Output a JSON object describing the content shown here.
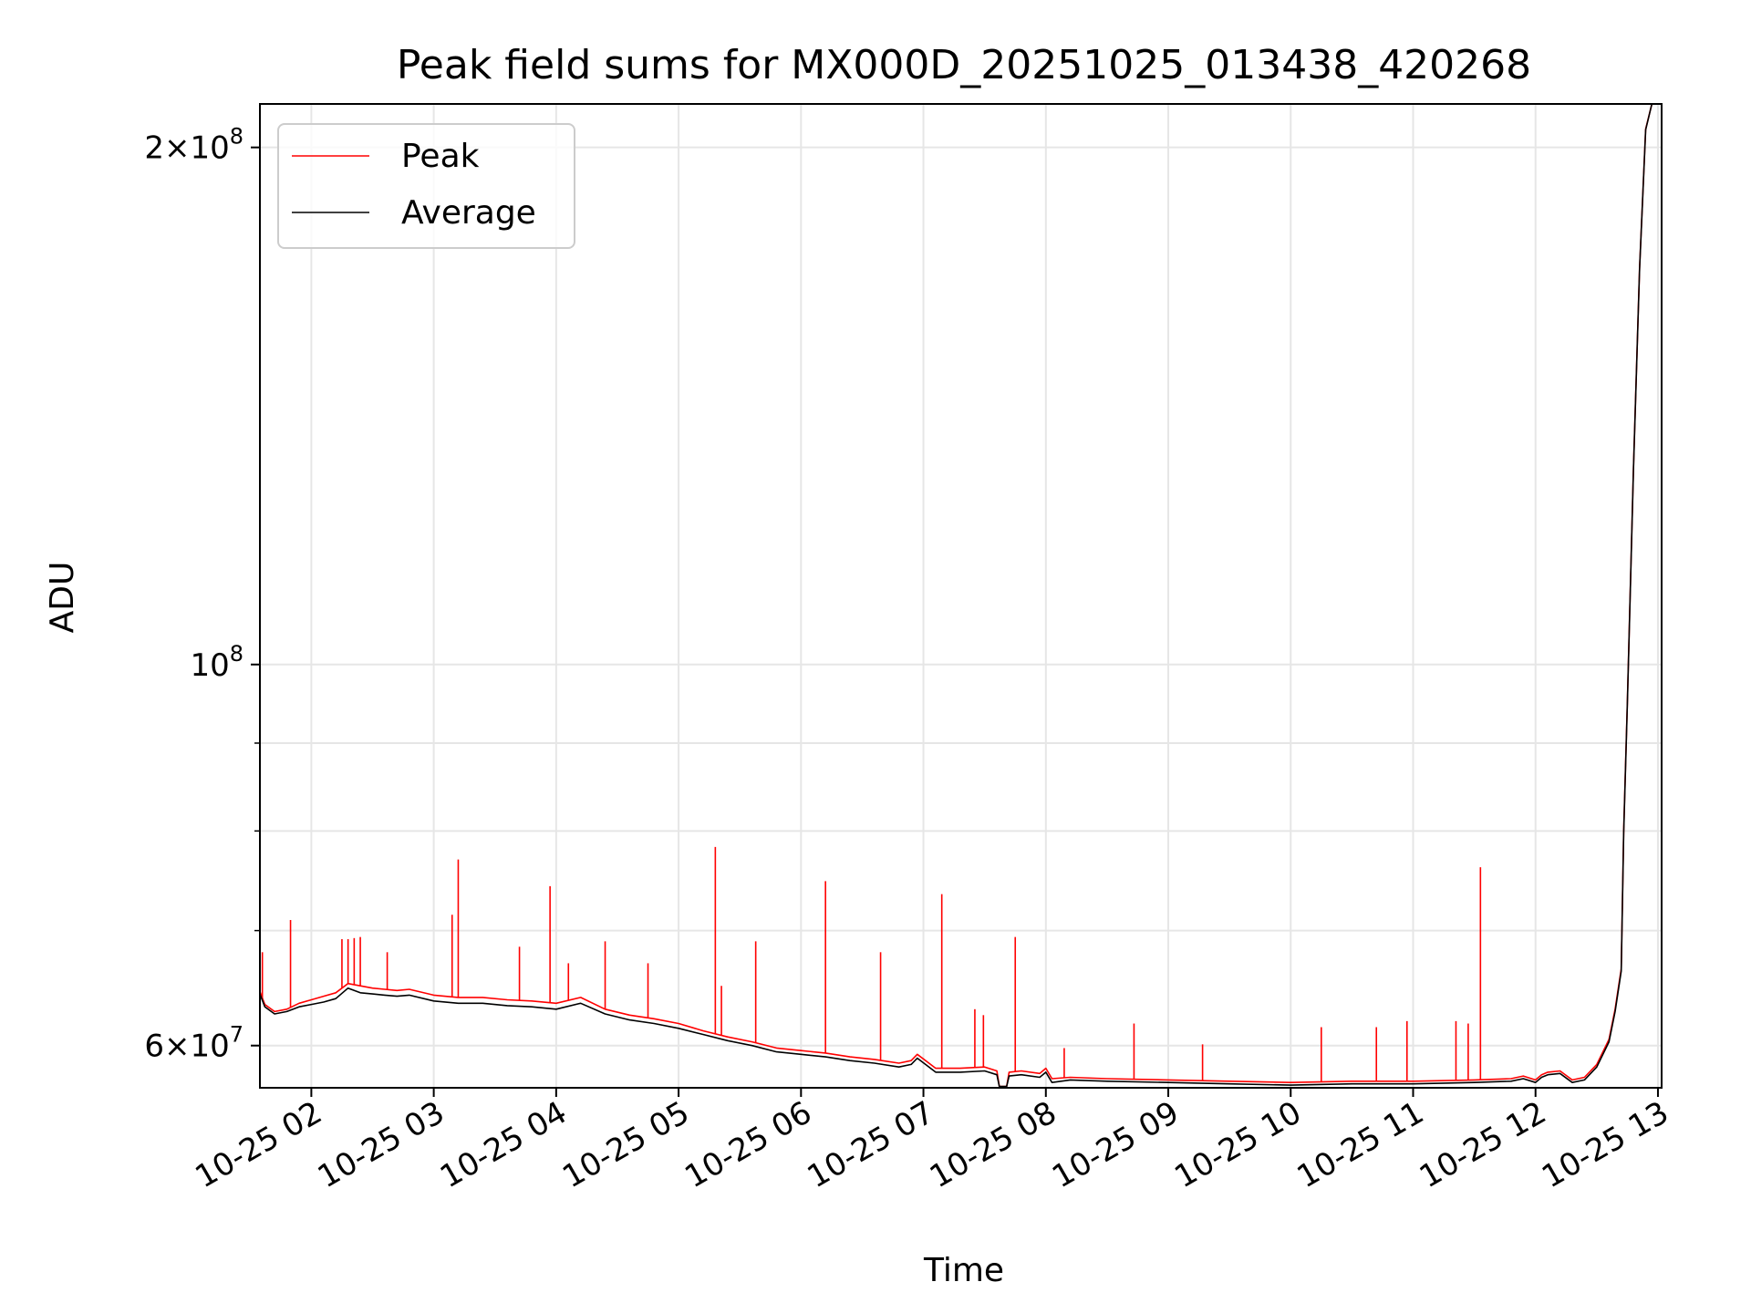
{
  "chart_data": {
    "type": "line",
    "title": "Peak field sums for MX000D_20251025_013438_420268",
    "xlabel": "Time",
    "ylabel": "ADU",
    "yscale": "log",
    "grid": true,
    "legend_position": "top-left",
    "xlim": [
      1.58,
      13.03
    ],
    "ylim": [
      56700000,
      212000000
    ],
    "x_ticks": [
      {
        "value": 2,
        "label": "10-25 02"
      },
      {
        "value": 3,
        "label": "10-25 03"
      },
      {
        "value": 4,
        "label": "10-25 04"
      },
      {
        "value": 5,
        "label": "10-25 05"
      },
      {
        "value": 6,
        "label": "10-25 06"
      },
      {
        "value": 7,
        "label": "10-25 07"
      },
      {
        "value": 8,
        "label": "10-25 08"
      },
      {
        "value": 9,
        "label": "10-25 09"
      },
      {
        "value": 10,
        "label": "10-25 10"
      },
      {
        "value": 11,
        "label": "10-25 11"
      },
      {
        "value": 12,
        "label": "10-25 12"
      },
      {
        "value": 13,
        "label": "10-25 13"
      }
    ],
    "y_major_ticks": [
      {
        "value": 60000000,
        "mantissa": "6",
        "exponent": "7"
      },
      {
        "value": 100000000,
        "mantissa": "",
        "exponent": "8"
      },
      {
        "value": 200000000,
        "mantissa": "2",
        "exponent": "8"
      }
    ],
    "y_minor_ticks": [
      70000000,
      80000000,
      90000000
    ],
    "times_symbol": "×",
    "base": "10",
    "series": [
      {
        "name": "Peak",
        "color": "#ff0000",
        "x": [
          1.58,
          1.62,
          1.7,
          1.8,
          1.9,
          2.0,
          2.1,
          2.2,
          2.3,
          2.4,
          2.5,
          2.6,
          2.7,
          2.8,
          3.0,
          3.2,
          3.4,
          3.6,
          3.8,
          4.0,
          4.2,
          4.4,
          4.6,
          4.8,
          5.0,
          5.2,
          5.4,
          5.6,
          5.8,
          6.0,
          6.2,
          6.4,
          6.6,
          6.8,
          6.9,
          6.95,
          7.1,
          7.3,
          7.5,
          7.6,
          7.62,
          7.68,
          7.7,
          7.8,
          7.95,
          8.0,
          8.05,
          8.2,
          8.5,
          9.0,
          9.5,
          10.0,
          10.5,
          11.0,
          11.5,
          11.8,
          11.9,
          12.0,
          12.05,
          12.1,
          12.2,
          12.3,
          12.4,
          12.5,
          12.6,
          12.65,
          12.7,
          12.72,
          12.75,
          12.8,
          12.85,
          12.9,
          12.95
        ],
        "values": [
          64500000,
          63400000,
          62800000,
          63000000,
          63500000,
          63800000,
          64100000,
          64400000,
          65200000,
          65000000,
          64800000,
          64700000,
          64600000,
          64700000,
          64200000,
          64000000,
          64000000,
          63800000,
          63700000,
          63500000,
          64000000,
          63000000,
          62500000,
          62200000,
          61800000,
          61200000,
          60700000,
          60300000,
          59800000,
          59600000,
          59400000,
          59100000,
          58900000,
          58600000,
          58800000,
          59300000,
          58200000,
          58200000,
          58300000,
          58000000,
          56800000,
          56800000,
          57900000,
          58000000,
          57800000,
          58200000,
          57400000,
          57500000,
          57400000,
          57300000,
          57200000,
          57100000,
          57200000,
          57200000,
          57300000,
          57400000,
          57600000,
          57300000,
          57700000,
          57900000,
          58000000,
          57300000,
          57500000,
          58500000,
          60500000,
          63000000,
          66500000,
          80000000,
          95000000,
          130000000,
          170000000,
          205000000,
          212000000
        ],
        "spikes": [
          {
            "x": 1.6,
            "value": 68000000
          },
          {
            "x": 1.83,
            "value": 71000000
          },
          {
            "x": 2.25,
            "value": 69200000
          },
          {
            "x": 2.3,
            "value": 69200000
          },
          {
            "x": 2.35,
            "value": 69300000
          },
          {
            "x": 2.4,
            "value": 69400000
          },
          {
            "x": 2.62,
            "value": 68000000
          },
          {
            "x": 3.15,
            "value": 71500000
          },
          {
            "x": 3.2,
            "value": 77000000
          },
          {
            "x": 3.7,
            "value": 68500000
          },
          {
            "x": 3.95,
            "value": 74300000
          },
          {
            "x": 4.1,
            "value": 67000000
          },
          {
            "x": 4.4,
            "value": 69000000
          },
          {
            "x": 4.75,
            "value": 67000000
          },
          {
            "x": 5.3,
            "value": 78300000
          },
          {
            "x": 5.35,
            "value": 65000000
          },
          {
            "x": 5.63,
            "value": 69000000
          },
          {
            "x": 6.2,
            "value": 74800000
          },
          {
            "x": 6.65,
            "value": 68000000
          },
          {
            "x": 7.15,
            "value": 73500000
          },
          {
            "x": 7.42,
            "value": 63000000
          },
          {
            "x": 7.49,
            "value": 62500000
          },
          {
            "x": 7.75,
            "value": 69400000
          },
          {
            "x": 8.15,
            "value": 59800000
          },
          {
            "x": 8.72,
            "value": 61800000
          },
          {
            "x": 9.28,
            "value": 60100000
          },
          {
            "x": 10.25,
            "value": 61500000
          },
          {
            "x": 10.7,
            "value": 61500000
          },
          {
            "x": 10.95,
            "value": 62000000
          },
          {
            "x": 11.35,
            "value": 62000000
          },
          {
            "x": 11.45,
            "value": 61800000
          },
          {
            "x": 11.55,
            "value": 76200000
          }
        ]
      },
      {
        "name": "Average",
        "color": "#000000",
        "x": [
          1.58,
          1.62,
          1.7,
          1.8,
          1.9,
          2.0,
          2.1,
          2.2,
          2.3,
          2.4,
          2.5,
          2.6,
          2.7,
          2.8,
          3.0,
          3.2,
          3.4,
          3.6,
          3.8,
          4.0,
          4.2,
          4.4,
          4.6,
          4.8,
          5.0,
          5.2,
          5.4,
          5.6,
          5.8,
          6.0,
          6.2,
          6.4,
          6.6,
          6.8,
          6.9,
          6.95,
          7.1,
          7.3,
          7.5,
          7.6,
          7.62,
          7.68,
          7.7,
          7.8,
          7.95,
          8.0,
          8.05,
          8.2,
          8.5,
          9.0,
          9.5,
          10.0,
          10.5,
          11.0,
          11.5,
          11.8,
          11.9,
          12.0,
          12.05,
          12.1,
          12.2,
          12.3,
          12.4,
          12.5,
          12.6,
          12.65,
          12.7,
          12.72,
          12.75,
          12.8,
          12.85,
          12.9,
          12.95
        ],
        "values": [
          64300000,
          63200000,
          62600000,
          62800000,
          63200000,
          63400000,
          63600000,
          63900000,
          64800000,
          64400000,
          64300000,
          64200000,
          64100000,
          64200000,
          63700000,
          63500000,
          63500000,
          63300000,
          63200000,
          63000000,
          63500000,
          62600000,
          62100000,
          61800000,
          61400000,
          60900000,
          60400000,
          60000000,
          59500000,
          59300000,
          59100000,
          58800000,
          58600000,
          58300000,
          58500000,
          59000000,
          57900000,
          57900000,
          58000000,
          57700000,
          56800000,
          56800000,
          57600000,
          57700000,
          57500000,
          57900000,
          57100000,
          57300000,
          57200000,
          57100000,
          57000000,
          56900000,
          57000000,
          57000000,
          57100000,
          57200000,
          57400000,
          57100000,
          57500000,
          57700000,
          57800000,
          57100000,
          57300000,
          58300000,
          60300000,
          62800000,
          66300000,
          79800000,
          94800000,
          129800000,
          169800000,
          204800000,
          212000000
        ]
      }
    ]
  }
}
